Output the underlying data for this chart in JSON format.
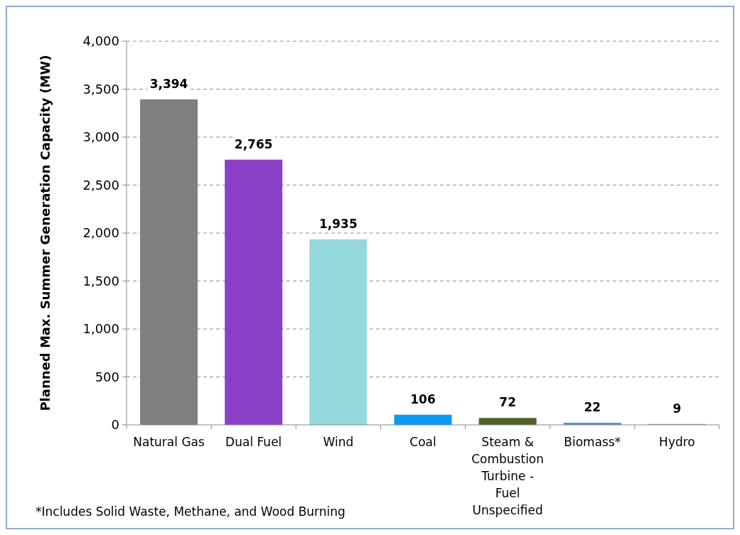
{
  "chart_data": {
    "type": "bar",
    "ylabel": "Planned Max. Summer Generation Capacity (MW)",
    "categories": [
      "Natural Gas",
      "Dual Fuel",
      "Wind",
      "Coal",
      "Steam & Combustion Turbine - Fuel Unspecified",
      "Biomass*",
      "Hydro"
    ],
    "values": [
      3394,
      2765,
      1935,
      106,
      72,
      22,
      9
    ],
    "colors": [
      "#7f7f7f",
      "#8b3fc6",
      "#95d8dc",
      "#0a9af7",
      "#4f6228",
      "#5b8ed6",
      "#8c9db8"
    ],
    "value_labels": [
      "3,394",
      "2,765",
      "1,935",
      "106",
      "72",
      "22",
      "9"
    ],
    "ylim": [
      0,
      4000
    ],
    "yticks": [
      {
        "value": 0,
        "label": "0"
      },
      {
        "value": 500,
        "label": "500"
      },
      {
        "value": 1000,
        "label": "1,000"
      },
      {
        "value": 1500,
        "label": "1,500"
      },
      {
        "value": 2000,
        "label": "2,000"
      },
      {
        "value": 2500,
        "label": "2,500"
      },
      {
        "value": 3000,
        "label": "3,000"
      },
      {
        "value": 3500,
        "label": "3,500"
      },
      {
        "value": 4000,
        "label": "4,000"
      }
    ],
    "grid": "y",
    "annotations": [
      "*Includes Solid Waste, Methane, and Wood Burning"
    ]
  }
}
